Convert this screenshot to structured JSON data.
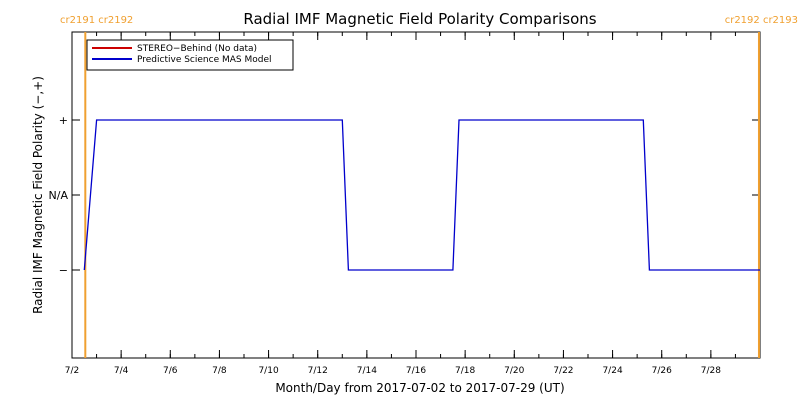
{
  "chart_data": {
    "type": "line",
    "title": "Radial IMF Magnetic Field Polarity Comparisons",
    "xlabel": "Month/Day from 2017-07-02 to 2017-07-29 (UT)",
    "ylabel": "Radial IMF Magnetic Field Polarity (−,+)",
    "x_range": [
      "2017-07-02",
      "2017-07-30"
    ],
    "x_ticks": [
      "7/2",
      "7/4",
      "7/6",
      "7/8",
      "7/10",
      "7/12",
      "7/14",
      "7/16",
      "7/18",
      "7/20",
      "7/22",
      "7/24",
      "7/26",
      "7/28"
    ],
    "y_ticks": [
      "−",
      "N/A",
      "+"
    ],
    "grid": false,
    "legend_position": "top-left",
    "carrington_left": "cr2191 cr2192",
    "carrington_right": "cr2192 cr2193",
    "carrington_color": "#f0a030",
    "carrington_markers": [
      "2017-07-02 13:00",
      "2017-07-29 23:00"
    ],
    "series": [
      {
        "name": "STEREO−Behind (No data)",
        "color": "#cc0000",
        "points": []
      },
      {
        "name": "Predictive Science MAS Model",
        "color": "#0000cc",
        "points": [
          [
            "2017-07-02 12:00",
            "−"
          ],
          [
            "2017-07-03 00:00",
            "+"
          ],
          [
            "2017-07-13 00:00",
            "+"
          ],
          [
            "2017-07-13 06:00",
            "−"
          ],
          [
            "2017-07-17 12:00",
            "−"
          ],
          [
            "2017-07-17 18:00",
            "+"
          ],
          [
            "2017-07-25 06:00",
            "+"
          ],
          [
            "2017-07-25 12:00",
            "−"
          ],
          [
            "2017-07-30 00:00",
            "−"
          ]
        ]
      }
    ]
  }
}
